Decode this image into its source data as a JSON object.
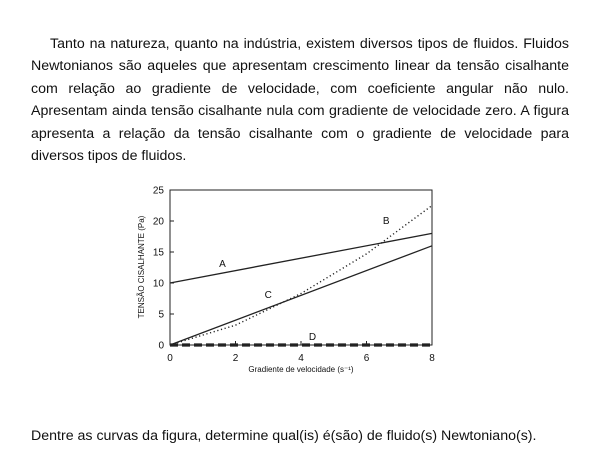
{
  "intro_paragraph": "Tanto na natureza, quanto na indústria, existem diversos tipos de fluidos. Fluidos Newtonianos são aqueles que apresentam crescimento linear da tensão cisalhante com relação ao gradiente de velocidade, com coeficiente angular não nulo. Apresentam ainda tensão cisalhante nula com gradiente de velocidade zero. A figura apresenta a relação da tensão cisalhante com o gradiente de velocidade para diversos tipos de fluidos.",
  "question": "Dentre as curvas da figura, determine qual(is) é(são) de fluido(s) Newtoniano(s).",
  "chart_data": {
    "type": "line",
    "xlabel": "Gradiente de velocidade (s⁻¹)",
    "ylabel": "TENSÃO CISALHANTE (Pa)",
    "xlim": [
      0,
      8
    ],
    "ylim": [
      0,
      25
    ],
    "xticks": [
      0,
      2,
      4,
      6,
      8
    ],
    "yticks": [
      0,
      5,
      10,
      15,
      20,
      25
    ],
    "grid": false,
    "series": [
      {
        "name": "A",
        "style": "solid",
        "x": [
          0,
          8
        ],
        "y": [
          10,
          18
        ]
      },
      {
        "name": "B",
        "style": "dotted",
        "x": [
          0,
          2,
          4,
          6,
          8
        ],
        "y": [
          0,
          3.2,
          8.3,
          14.7,
          22.5
        ]
      },
      {
        "name": "C",
        "style": "solid",
        "x": [
          0,
          8
        ],
        "y": [
          0,
          16
        ]
      },
      {
        "name": "D",
        "style": "dashed",
        "x": [
          0,
          8
        ],
        "y": [
          0,
          0
        ]
      }
    ]
  }
}
